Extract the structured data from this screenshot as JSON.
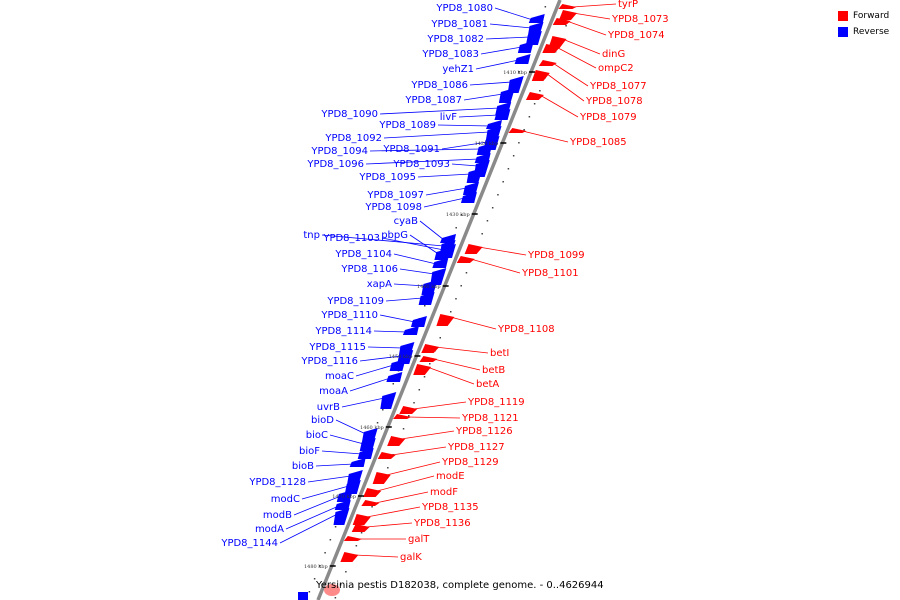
{
  "legend": {
    "forward_label": "Forward",
    "reverse_label": "Reverse",
    "forward_color": "#ff0000",
    "reverse_color": "#0000ff"
  },
  "caption": "Yersinia pestis D182038, complete genome. - 0..4626944",
  "ticks": [
    "1410 kbp",
    "1420 kbp",
    "1430 kbp",
    "1440 kbp",
    "1450 kbp",
    "1460 kbp",
    "1470 kbp",
    "1480 kbp"
  ],
  "genes_reverse": [
    "YPD8_1080",
    "YPD8_1081",
    "YPD8_1082",
    "YPD8_1083",
    "yehZ1",
    "YPD8_1086",
    "YPD8_1087",
    "YPD8_1090",
    "livF",
    "YPD8_1089",
    "YPD8_1092",
    "YPD8_1091",
    "YPD8_1094",
    "YPD8_1096",
    "YPD8_1093",
    "YPD8_1095",
    "YPD8_1097",
    "YPD8_1098",
    "cyaB",
    "tnp",
    "YPD8_1103",
    "pbpG",
    "YPD8_1104",
    "YPD8_1106",
    "xapA",
    "YPD8_1109",
    "YPD8_1110",
    "YPD8_1114",
    "YPD8_1115",
    "YPD8_1116",
    "moaC",
    "moaA",
    "uvrB",
    "bioD",
    "bioC",
    "bioF",
    "bioB",
    "YPD8_1128",
    "modC",
    "modB",
    "modA",
    "YPD8_1144"
  ],
  "genes_forward": [
    "tyrP",
    "YPD8_1073",
    "YPD8_1074",
    "dinG",
    "ompC2",
    "YPD8_1077",
    "YPD8_1078",
    "YPD8_1079",
    "YPD8_1085",
    "YPD8_1099",
    "YPD8_1101",
    "YPD8_1108",
    "betI",
    "betB",
    "betA",
    "YPD8_1119",
    "YPD8_1121",
    "YPD8_1126",
    "YPD8_1127",
    "YPD8_1129",
    "modE",
    "modF",
    "YPD8_1135",
    "YPD8_1136",
    "galT",
    "galK"
  ]
}
